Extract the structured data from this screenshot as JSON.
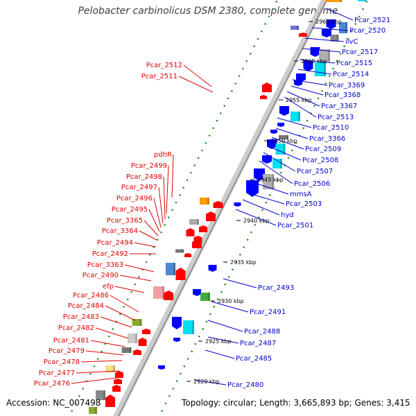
{
  "title": "Pelobacter carbinolicus DSM 2380, complete genome",
  "accession": "Accession: NC_007498",
  "topology": "Topology: circular; Length: 3,665,893 bp; Genes: 3,415",
  "ticks": [
    "2965 kbp",
    "2960 kbp",
    "2955 kbp",
    "2950 kbp",
    "2945 kbp",
    "2940 kbp",
    "2935 kbp",
    "2930 kbp",
    "2925 kbp",
    "2920 kbp"
  ],
  "left_labels": [
    "Pcar_2512",
    "Pcar_2511",
    "pdhR",
    "Pcar_2499",
    "Pcar_2498",
    "Pcar_2497",
    "Pcar_2496",
    "Pcar_2495",
    "Pcar_3365",
    "Pcar_3364",
    "Pcar_2494",
    "Pcar_2492",
    "Pcar_3363",
    "Pcar_2490",
    "efp",
    "Pcar_2486",
    "Pcar_2484",
    "Pcar_2483",
    "Pcar_2482",
    "Pcar_2481",
    "Pcar_2479",
    "Pcar_2478",
    "Pcar_2477",
    "Pcar_2476"
  ],
  "right_labels": [
    "Pcar_2521",
    "Pcar_2520",
    "ilvC",
    "Pcar_2517",
    "Pcar_2515",
    "Pcar_2514",
    "Pcar_3369",
    "Pcar_3368",
    "Pcar_3367",
    "Pcar_2513",
    "Pcar_2510",
    "Pcar_3366",
    "Pcar_2509",
    "Pcar_2508",
    "Pcar_2507",
    "Pcar_2506",
    "mmsA",
    "Pcar_2503",
    "hyd",
    "Pcar_2501",
    "Pcar_2493",
    "Pcar_2491",
    "Pcar_2488",
    "Pcar_2487",
    "Pcar_2485",
    "Pcar_2480"
  ],
  "colors": {
    "forward": "#ff0000",
    "reverse": "#0000ff",
    "label_forward": "#e00000",
    "label_reverse": "#0000cc",
    "backbone": "#999999"
  }
}
